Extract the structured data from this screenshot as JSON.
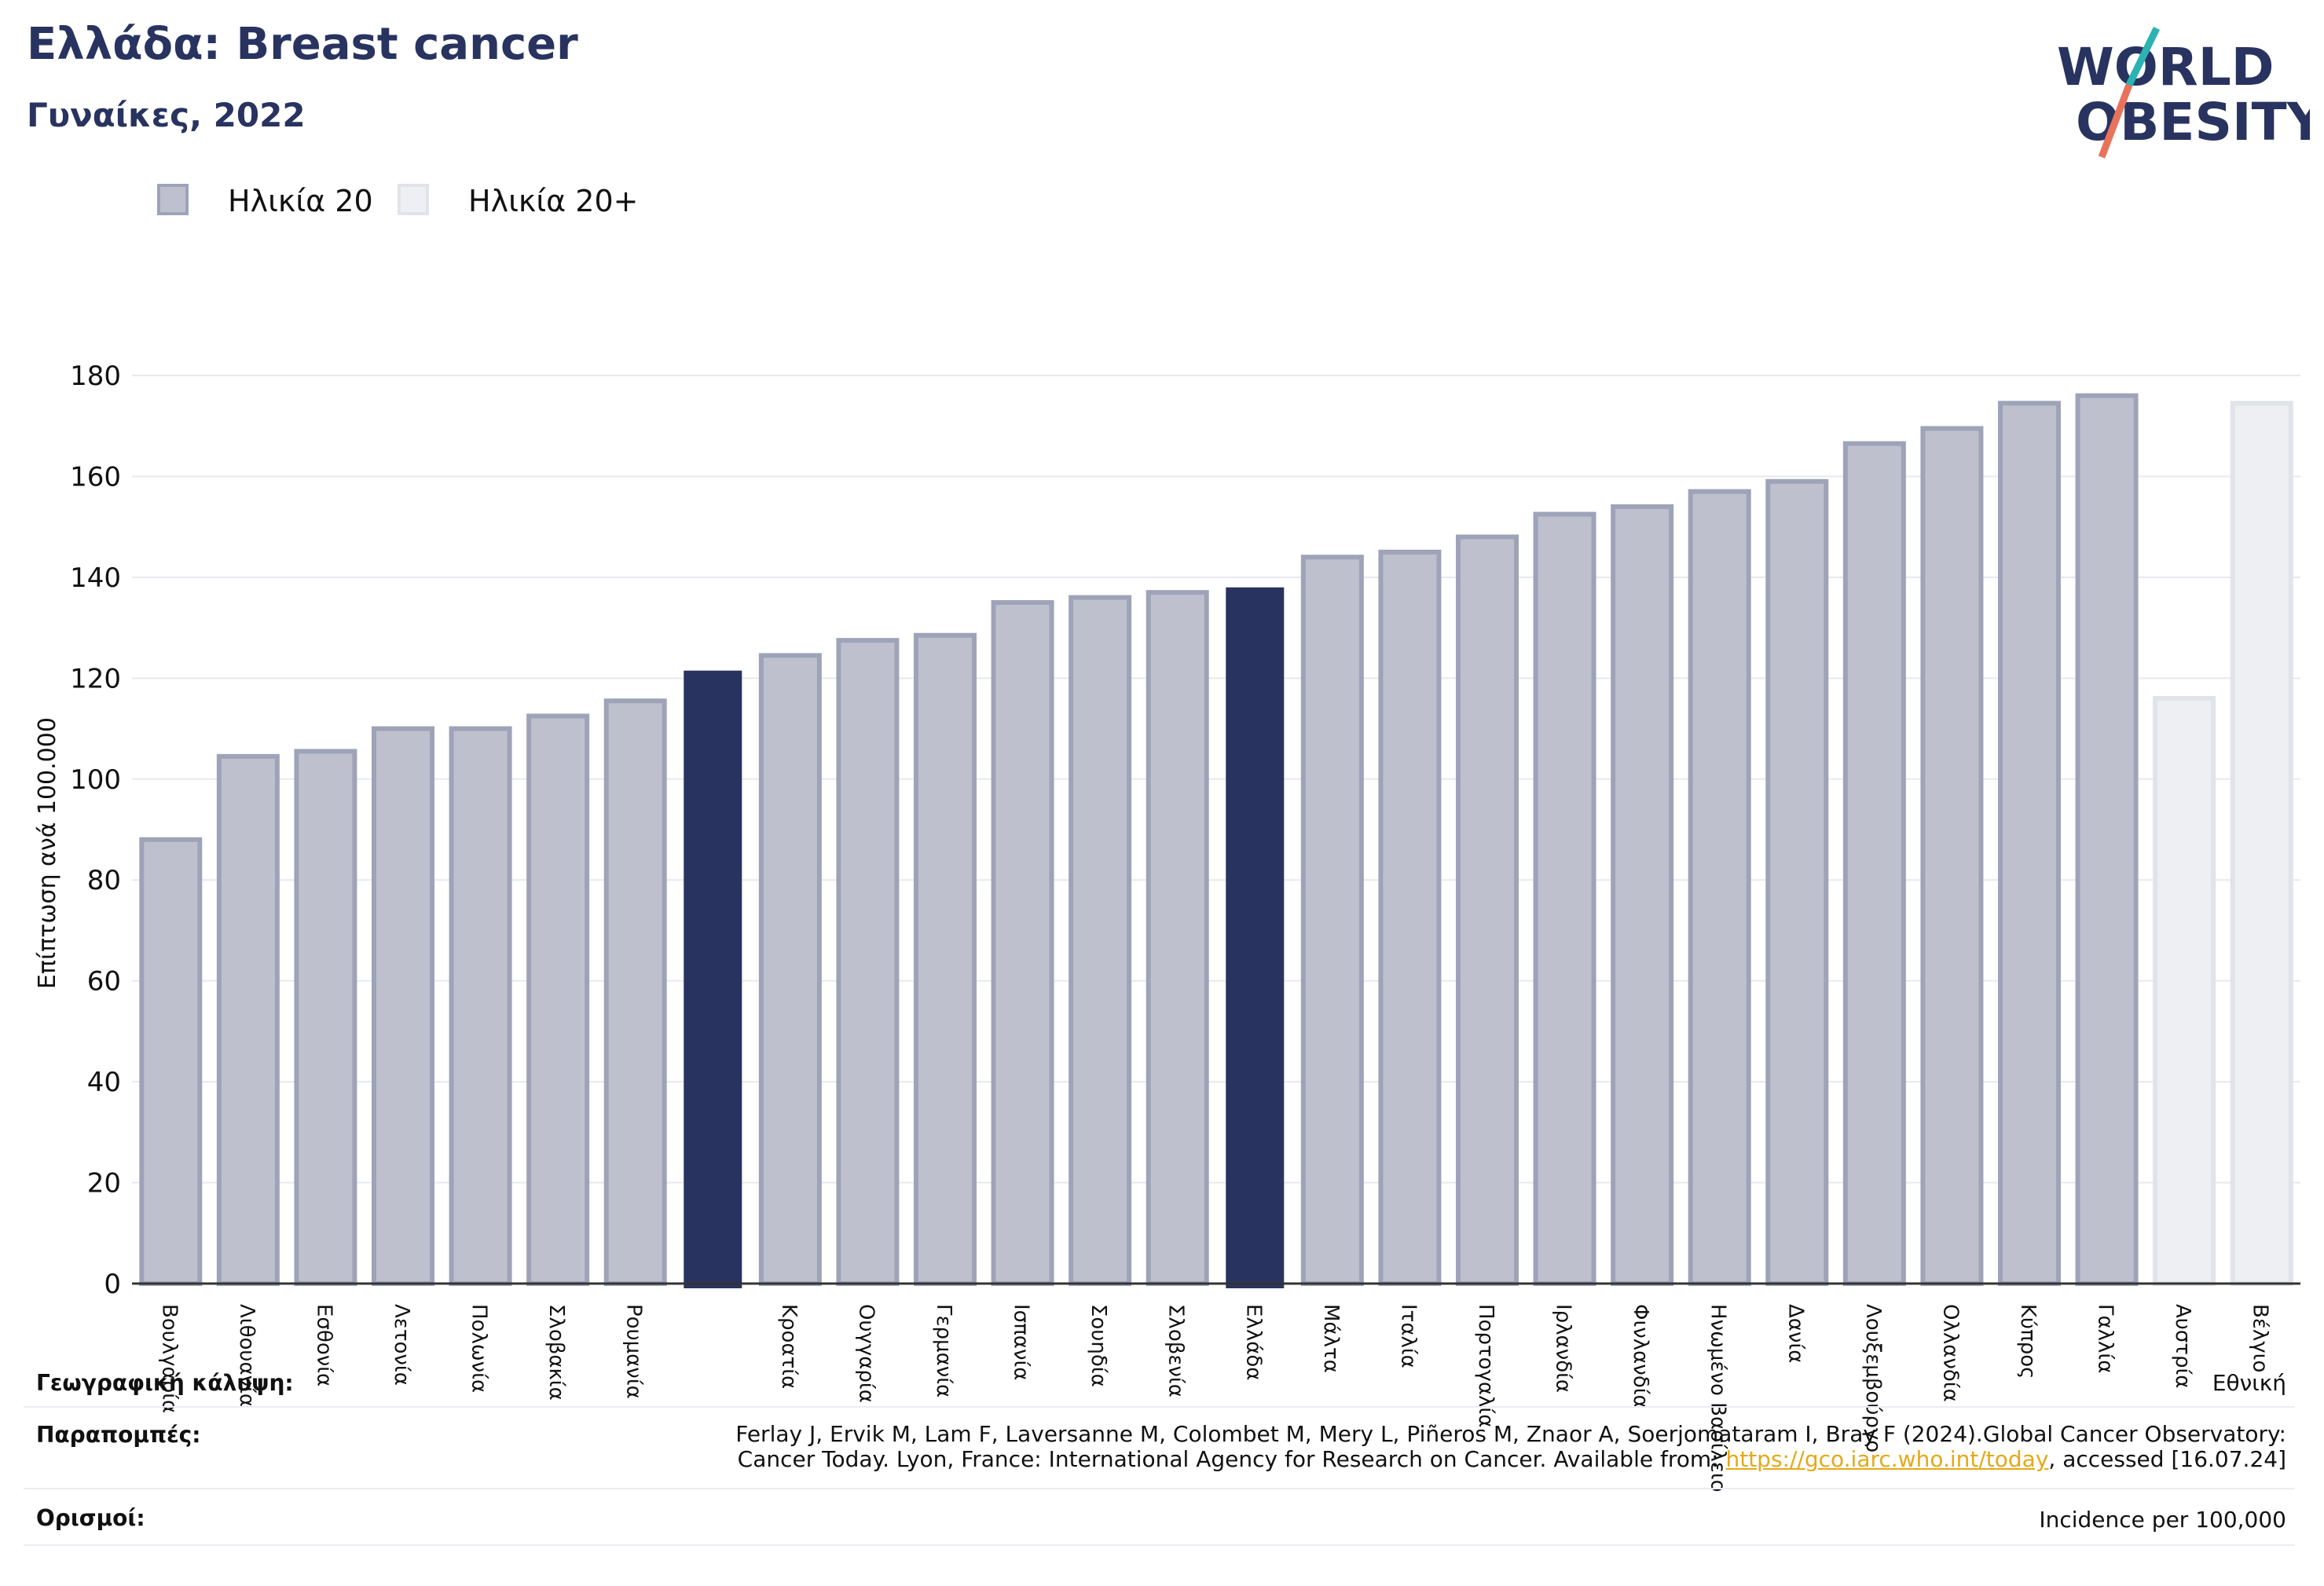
{
  "header": {
    "title": "Ελλάδα: Breast cancer",
    "subtitle": "Γυναίκες, 2022"
  },
  "logo": {
    "line1": "WORLD",
    "line2": "OBESITY",
    "colors": {
      "text": "#283360",
      "slash_top": "#2bb3b1",
      "slash_bottom": "#e8735a"
    }
  },
  "legend": {
    "items": [
      {
        "label": "Ηλικία 20",
        "fill": "#bec1cd",
        "stroke": "#9ea3b8"
      },
      {
        "label": "Ηλικία 20+",
        "fill": "#eeeff3",
        "stroke": "#e1e3ea"
      }
    ]
  },
  "chart_data": {
    "type": "bar",
    "ylabel": "Επίπτωση ανά 100.000",
    "ylim": [
      0,
      180
    ],
    "yticks": [
      0,
      20,
      40,
      60,
      80,
      100,
      120,
      140,
      160,
      180
    ],
    "grid": true,
    "colors": {
      "default": "#bec1cd",
      "default_stroke": "#9ea3b8",
      "highlight": "#283360",
      "light": "#eeeff3",
      "light_stroke": "#e1e3ea"
    },
    "bars": [
      {
        "label": "Βουλγαρία",
        "value": 88,
        "style": "default"
      },
      {
        "label": "Λιθουανία",
        "value": 104.5,
        "style": "default"
      },
      {
        "label": "Εσθονία",
        "value": 105.5,
        "style": "default"
      },
      {
        "label": "Λετονία",
        "value": 110,
        "style": "default"
      },
      {
        "label": "Πολωνία",
        "value": 110,
        "style": "default"
      },
      {
        "label": "Σλοβακία",
        "value": 112.5,
        "style": "default"
      },
      {
        "label": "Ρουμανία",
        "value": 115.5,
        "style": "default"
      },
      {
        "label": "",
        "value": 121.5,
        "style": "highlight"
      },
      {
        "label": "Κροατία",
        "value": 124.5,
        "style": "default"
      },
      {
        "label": "Ουγγαρία",
        "value": 127.5,
        "style": "default"
      },
      {
        "label": "Γερμανία",
        "value": 128.5,
        "style": "default"
      },
      {
        "label": "Ισπανία",
        "value": 135,
        "style": "default"
      },
      {
        "label": "Σουηδία",
        "value": 136,
        "style": "default"
      },
      {
        "label": "Σλοβενία",
        "value": 137,
        "style": "default"
      },
      {
        "label": "Ελλάδα",
        "value": 138,
        "style": "highlight"
      },
      {
        "label": "Μάλτα",
        "value": 144,
        "style": "default"
      },
      {
        "label": "Ιταλία",
        "value": 145,
        "style": "default"
      },
      {
        "label": "Πορτογαλία",
        "value": 148,
        "style": "default"
      },
      {
        "label": "Ιρλανδία",
        "value": 152.5,
        "style": "default"
      },
      {
        "label": "Φινλανδία",
        "value": 154,
        "style": "default"
      },
      {
        "label": "Ηνωμένο Βασίλειο",
        "value": 157,
        "style": "default"
      },
      {
        "label": "Δανία",
        "value": 159,
        "style": "default"
      },
      {
        "label": "Λουξεμβούργο",
        "value": 166.5,
        "style": "default"
      },
      {
        "label": "Ολλανδία",
        "value": 169.5,
        "style": "default"
      },
      {
        "label": "Κύπρος",
        "value": 174.5,
        "style": "default"
      },
      {
        "label": "Γαλλία",
        "value": 176,
        "style": "default"
      },
      {
        "label": "Αυστρία",
        "value": 116,
        "style": "light"
      },
      {
        "label": "Βέλγιο",
        "value": 174.5,
        "style": "light"
      }
    ]
  },
  "info": {
    "coverage_key": "Γεωγραφική κάλυψη:",
    "coverage_value": "Εθνική",
    "references_key": "Παραπομπές:",
    "references_line1": "Ferlay J, Ervik M, Lam F, Laversanne M, Colombet M, Mery L, Piñeros M, Znaor A, Soerjomataram I, Bray F (2024).Global Cancer Observatory:",
    "references_line2_pre": "Cancer Today. Lyon, France: International Agency for Research on Cancer. Available from: ",
    "references_link": "https://gco.iarc.who.int/today",
    "references_line2_post": ", accessed [16.07.24]",
    "definitions_key": "Ορισμοί:",
    "definitions_value": "Incidence per 100,000"
  }
}
